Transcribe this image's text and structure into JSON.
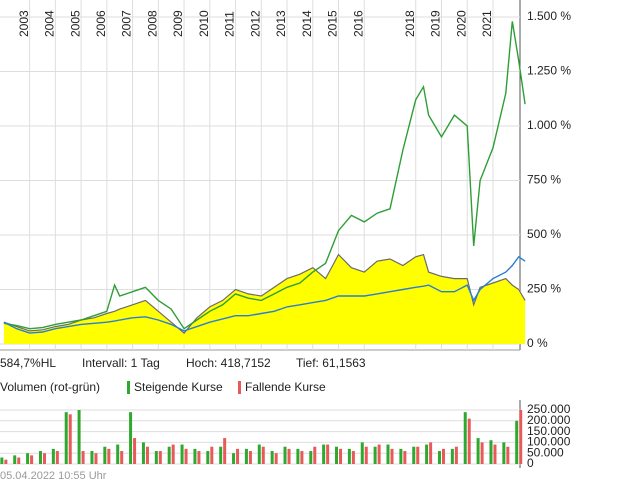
{
  "chart_data": [
    {
      "type": "line",
      "x": [
        2002.0,
        2002.5,
        2003.0,
        2003.5,
        2004.0,
        2004.5,
        2005.0,
        2005.5,
        2006.0,
        2006.3,
        2006.5,
        2007.0,
        2007.5,
        2008.0,
        2008.5,
        2009.0,
        2009.5,
        2010.0,
        2010.5,
        2011.0,
        2011.5,
        2012.0,
        2012.5,
        2013.0,
        2013.5,
        2014.0,
        2014.5,
        2015.0,
        2015.5,
        2016.0,
        2016.5,
        2017.0,
        2017.5,
        2018.0,
        2018.3,
        2018.5,
        2019.0,
        2019.5,
        2020.0,
        2020.25,
        2020.5,
        2021.0,
        2021.5,
        2021.75,
        2022.0,
        2022.25
      ],
      "series": [
        {
          "color": "#ffff00",
          "line_color": "#6b6b6b",
          "area": true,
          "values": [
            100,
            80,
            60,
            65,
            80,
            90,
            110,
            120,
            140,
            150,
            160,
            180,
            200,
            150,
            100,
            50,
            120,
            170,
            200,
            250,
            230,
            220,
            260,
            300,
            320,
            350,
            300,
            410,
            350,
            330,
            380,
            390,
            360,
            400,
            410,
            330,
            310,
            300,
            300,
            180,
            260,
            280,
            300,
            270,
            250,
            200
          ]
        },
        {
          "color": "#2e9e36",
          "values": [
            95,
            85,
            70,
            75,
            90,
            100,
            110,
            130,
            150,
            270,
            220,
            240,
            260,
            200,
            160,
            70,
            110,
            150,
            180,
            230,
            210,
            200,
            230,
            260,
            280,
            330,
            370,
            520,
            590,
            560,
            600,
            620,
            890,
            1120,
            1180,
            1050,
            950,
            1050,
            1000,
            450,
            750,
            900,
            1150,
            1480,
            1300,
            1100
          ]
        },
        {
          "color": "#2a7fd4",
          "values": [
            100,
            70,
            50,
            55,
            70,
            80,
            90,
            95,
            100,
            105,
            110,
            120,
            125,
            110,
            90,
            60,
            80,
            100,
            115,
            130,
            130,
            140,
            150,
            170,
            180,
            190,
            200,
            220,
            220,
            220,
            230,
            240,
            250,
            260,
            265,
            270,
            240,
            240,
            270,
            200,
            250,
            300,
            330,
            360,
            400,
            380
          ]
        }
      ],
      "xlim": [
        2001.85,
        2022.05
      ],
      "xticks": [
        2003,
        2004,
        2005,
        2006,
        2007,
        2008,
        2009,
        2010,
        2011,
        2012,
        2013,
        2014,
        2015,
        2016,
        2018,
        2019,
        2020,
        2021
      ],
      "ylim": [
        0,
        1500
      ],
      "yticks": [
        {
          "value": 1500,
          "label": "1.500 %"
        },
        {
          "value": 1250,
          "label": "1.250 %"
        },
        {
          "value": 1000,
          "label": "1.000 %"
        },
        {
          "value": 750,
          "label": "750 %"
        },
        {
          "value": 500,
          "label": "500 %"
        },
        {
          "value": 250,
          "label": "250 %"
        },
        {
          "value": 0,
          "label": "0 %"
        }
      ],
      "grid": true,
      "info": [
        "584,7%HL",
        "Intervall: 1 Tag",
        "Hoch: 418,7152",
        "Tief: 61,1563"
      ]
    },
    {
      "type": "bar",
      "title": "Volumen (rot-grün)",
      "x": [
        2002.0,
        2002.5,
        2003.0,
        2003.5,
        2004.0,
        2004.5,
        2005.0,
        2005.5,
        2006.0,
        2006.5,
        2007.0,
        2007.5,
        2008.0,
        2008.5,
        2009.0,
        2009.5,
        2010.0,
        2010.5,
        2011.0,
        2011.5,
        2012.0,
        2012.5,
        2013.0,
        2013.5,
        2014.0,
        2014.5,
        2015.0,
        2015.5,
        2016.0,
        2016.5,
        2017.0,
        2017.5,
        2018.0,
        2018.5,
        2019.0,
        2019.5,
        2020.0,
        2020.5,
        2021.0,
        2021.5,
        2022.0
      ],
      "series": [
        {
          "name": "Steigende Kurse",
          "color": "#2ea82e",
          "values": [
            30000,
            40000,
            50000,
            60000,
            70000,
            240000,
            250000,
            60000,
            80000,
            90000,
            240000,
            100000,
            60000,
            80000,
            90000,
            70000,
            60000,
            80000,
            50000,
            70000,
            90000,
            60000,
            80000,
            70000,
            60000,
            90000,
            80000,
            70000,
            100000,
            80000,
            90000,
            70000,
            80000,
            90000,
            60000,
            70000,
            240000,
            120000,
            110000,
            100000,
            200000
          ]
        },
        {
          "name": "Fallende Kurse",
          "color": "#e85a5a",
          "values": [
            20000,
            30000,
            40000,
            50000,
            60000,
            230000,
            60000,
            50000,
            70000,
            60000,
            120000,
            80000,
            60000,
            90000,
            70000,
            60000,
            80000,
            120000,
            70000,
            60000,
            80000,
            50000,
            70000,
            60000,
            80000,
            90000,
            70000,
            60000,
            80000,
            90000,
            70000,
            60000,
            80000,
            100000,
            70000,
            80000,
            210000,
            100000,
            90000,
            80000,
            250000
          ]
        }
      ],
      "xlim": [
        2001.85,
        2022.05
      ],
      "ylim": [
        0,
        250000
      ],
      "yticks": [
        {
          "value": 250000,
          "label": "250.000"
        },
        {
          "value": 200000,
          "label": "200.000"
        },
        {
          "value": 150000,
          "label": "150.000"
        },
        {
          "value": 100000,
          "label": "100.000"
        },
        {
          "value": 50000,
          "label": "50.000"
        },
        0
      ]
    }
  ],
  "timestamp": "05.04.2022 10:55 Uhr"
}
